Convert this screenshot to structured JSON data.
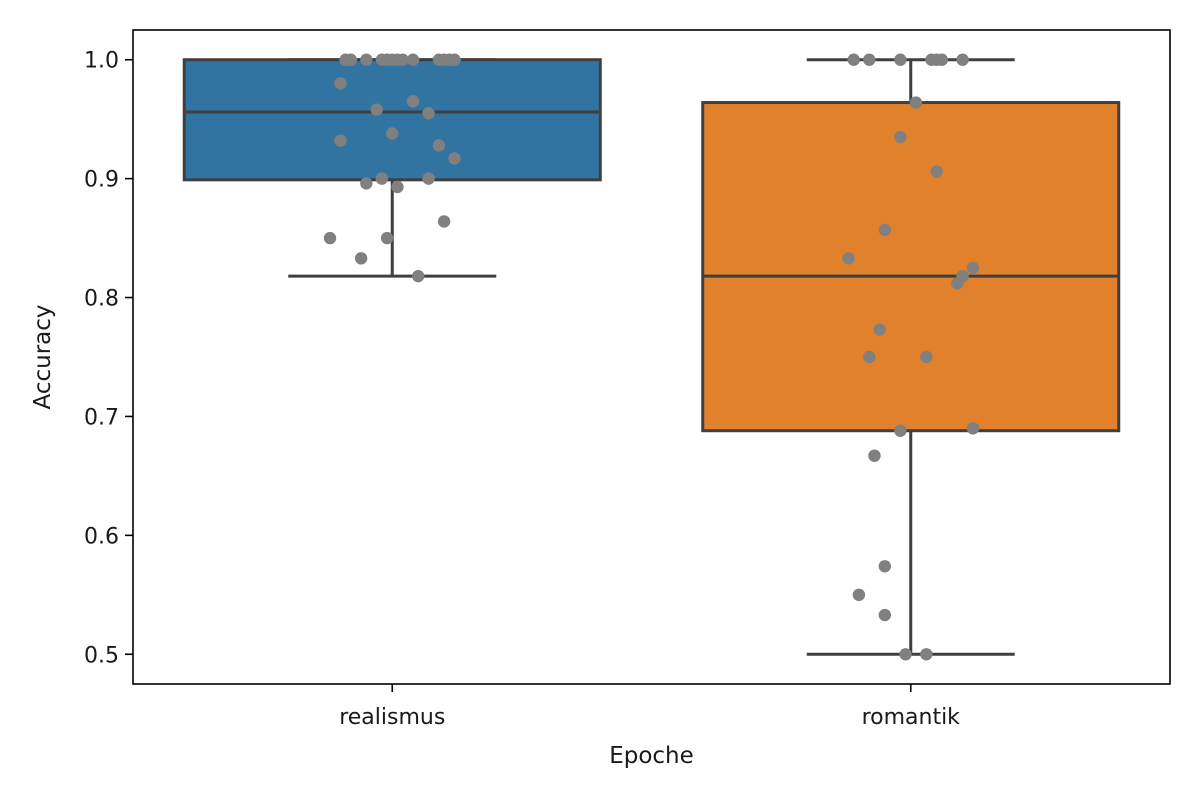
{
  "chart_data": {
    "type": "box",
    "xlabel": "Epoche",
    "ylabel": "Accuracy",
    "ylim": [
      0.475,
      1.025
    ],
    "yticks": [
      0.5,
      0.6,
      0.7,
      0.8,
      0.9,
      1.0
    ],
    "ytick_labels": [
      "0.5",
      "0.6",
      "0.7",
      "0.8",
      "0.9",
      "1.0"
    ],
    "grid": false,
    "categories": [
      "realismus",
      "romantik"
    ],
    "colors": {
      "realismus": "#3274a1",
      "romantik": "#e1812c",
      "lines": "#3f3f3f",
      "points": "#808080"
    },
    "boxes": [
      {
        "category": "realismus",
        "whisker_low": 0.818,
        "q1": 0.899,
        "median": 0.956,
        "q3": 1.0,
        "whisker_high": 1.0,
        "points": [
          {
            "x_jitter": -0.09,
            "y": 1.0
          },
          {
            "x_jitter": -0.08,
            "y": 1.0
          },
          {
            "x_jitter": -0.05,
            "y": 1.0
          },
          {
            "x_jitter": -0.02,
            "y": 1.0
          },
          {
            "x_jitter": -0.01,
            "y": 1.0
          },
          {
            "x_jitter": 0.0,
            "y": 1.0
          },
          {
            "x_jitter": 0.01,
            "y": 1.0
          },
          {
            "x_jitter": 0.02,
            "y": 1.0
          },
          {
            "x_jitter": 0.04,
            "y": 1.0
          },
          {
            "x_jitter": 0.09,
            "y": 1.0
          },
          {
            "x_jitter": 0.1,
            "y": 1.0
          },
          {
            "x_jitter": 0.11,
            "y": 1.0
          },
          {
            "x_jitter": 0.12,
            "y": 1.0
          },
          {
            "x_jitter": -0.1,
            "y": 0.98
          },
          {
            "x_jitter": 0.04,
            "y": 0.965
          },
          {
            "x_jitter": -0.03,
            "y": 0.958
          },
          {
            "x_jitter": 0.07,
            "y": 0.955
          },
          {
            "x_jitter": 0.0,
            "y": 0.938
          },
          {
            "x_jitter": -0.1,
            "y": 0.932
          },
          {
            "x_jitter": 0.09,
            "y": 0.928
          },
          {
            "x_jitter": 0.12,
            "y": 0.917
          },
          {
            "x_jitter": -0.02,
            "y": 0.9
          },
          {
            "x_jitter": 0.07,
            "y": 0.9
          },
          {
            "x_jitter": -0.05,
            "y": 0.896
          },
          {
            "x_jitter": 0.01,
            "y": 0.893
          },
          {
            "x_jitter": 0.1,
            "y": 0.864
          },
          {
            "x_jitter": -0.12,
            "y": 0.85
          },
          {
            "x_jitter": -0.01,
            "y": 0.85
          },
          {
            "x_jitter": -0.06,
            "y": 0.833
          },
          {
            "x_jitter": 0.05,
            "y": 0.818
          }
        ]
      },
      {
        "category": "romantik",
        "whisker_low": 0.5,
        "q1": 0.688,
        "median": 0.818,
        "q3": 0.964,
        "whisker_high": 1.0,
        "points": [
          {
            "x_jitter": -0.11,
            "y": 1.0
          },
          {
            "x_jitter": -0.08,
            "y": 1.0
          },
          {
            "x_jitter": -0.02,
            "y": 1.0
          },
          {
            "x_jitter": 0.04,
            "y": 1.0
          },
          {
            "x_jitter": 0.05,
            "y": 1.0
          },
          {
            "x_jitter": 0.06,
            "y": 1.0
          },
          {
            "x_jitter": 0.1,
            "y": 1.0
          },
          {
            "x_jitter": 0.01,
            "y": 0.964
          },
          {
            "x_jitter": -0.02,
            "y": 0.935
          },
          {
            "x_jitter": 0.05,
            "y": 0.906
          },
          {
            "x_jitter": -0.05,
            "y": 0.857
          },
          {
            "x_jitter": -0.12,
            "y": 0.833
          },
          {
            "x_jitter": 0.12,
            "y": 0.825
          },
          {
            "x_jitter": 0.1,
            "y": 0.818
          },
          {
            "x_jitter": 0.09,
            "y": 0.812
          },
          {
            "x_jitter": -0.06,
            "y": 0.773
          },
          {
            "x_jitter": -0.08,
            "y": 0.75
          },
          {
            "x_jitter": 0.03,
            "y": 0.75
          },
          {
            "x_jitter": 0.12,
            "y": 0.69
          },
          {
            "x_jitter": -0.02,
            "y": 0.688
          },
          {
            "x_jitter": -0.07,
            "y": 0.667
          },
          {
            "x_jitter": -0.05,
            "y": 0.574
          },
          {
            "x_jitter": -0.1,
            "y": 0.55
          },
          {
            "x_jitter": -0.05,
            "y": 0.533
          },
          {
            "x_jitter": -0.01,
            "y": 0.5
          },
          {
            "x_jitter": 0.03,
            "y": 0.5
          }
        ]
      }
    ]
  }
}
